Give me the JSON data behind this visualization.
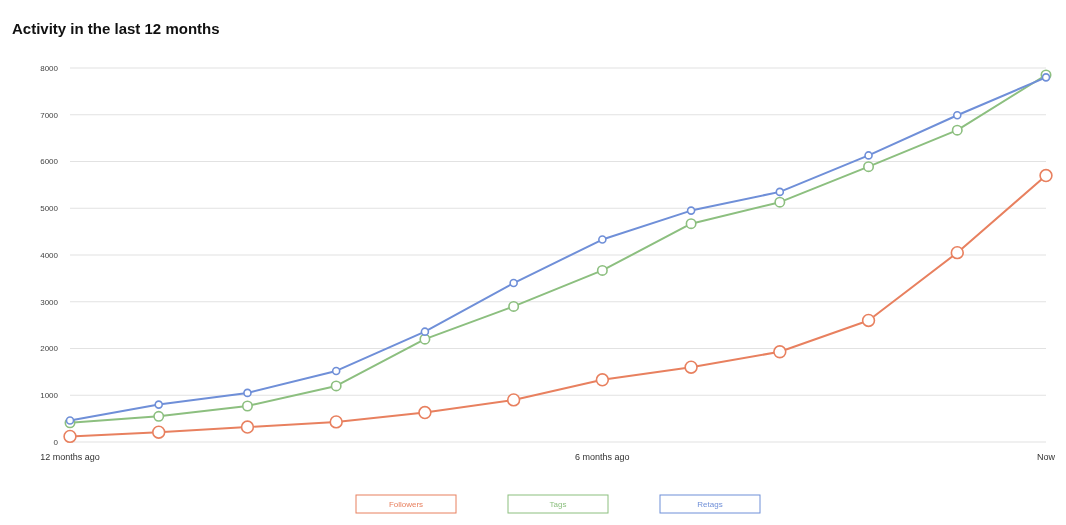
{
  "chart_data": {
    "type": "line",
    "title": "Activity in the last 12 months",
    "categories": [
      "12 months ago",
      null,
      null,
      null,
      null,
      null,
      "6 months ago",
      null,
      null,
      null,
      null,
      "Now"
    ],
    "ylim": [
      0,
      8000
    ],
    "yticks": [
      0,
      1000,
      2000,
      3000,
      4000,
      5000,
      6000,
      7000,
      8000
    ],
    "grid": "y",
    "legend": "bottom",
    "marker": "circle",
    "series": [
      {
        "name": "Followers",
        "color": "#e8805f",
        "values": [
          120,
          210,
          320,
          430,
          630,
          900,
          1330,
          1600,
          1930,
          2600,
          4050,
          5700
        ]
      },
      {
        "name": "Tags",
        "color": "#8cbf7f",
        "values": [
          410,
          550,
          770,
          1200,
          2200,
          2900,
          3670,
          4670,
          5130,
          5890,
          6670,
          7850
        ]
      },
      {
        "name": "Retags",
        "color": "#6f8fd8",
        "values": [
          460,
          800,
          1050,
          1520,
          2360,
          3400,
          4330,
          4950,
          5350,
          6130,
          6990,
          7800
        ]
      }
    ]
  }
}
